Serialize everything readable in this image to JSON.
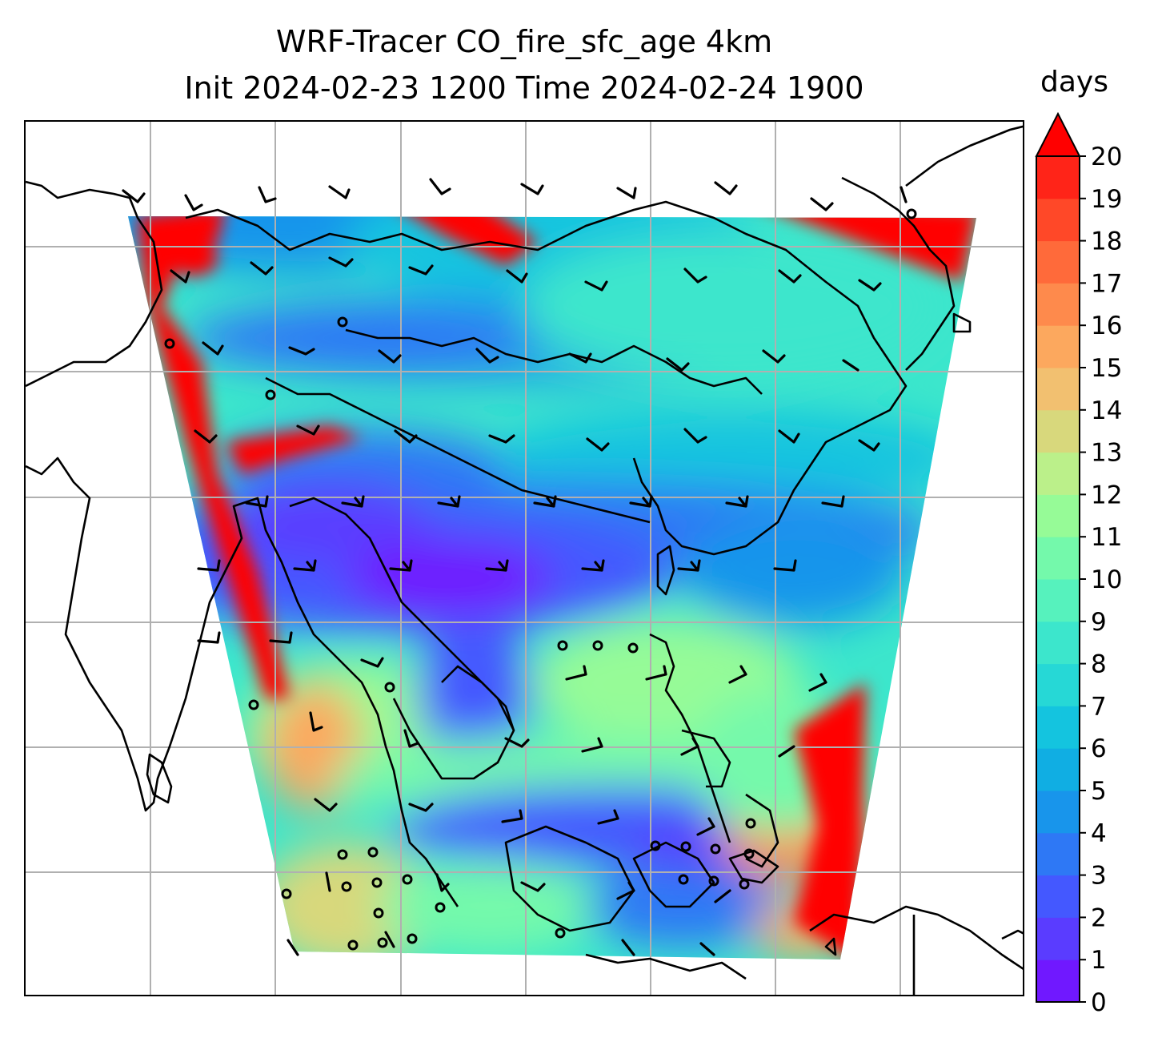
{
  "title": {
    "line1": "WRF-Tracer CO_fire_sfc_age 4km",
    "line2": "Init 2024-02-23 1200 Time 2024-02-24 1900"
  },
  "colorbar": {
    "unit_label": "days",
    "ticks": [
      "0",
      "1",
      "2",
      "3",
      "4",
      "5",
      "6",
      "7",
      "8",
      "9",
      "10",
      "11",
      "12",
      "13",
      "14",
      "15",
      "16",
      "17",
      "18",
      "19",
      "20"
    ],
    "extend": "max",
    "colors": [
      "#7018ff",
      "#5a3cff",
      "#4458ff",
      "#2e78f5",
      "#1895eb",
      "#10aee3",
      "#14c4df",
      "#26d8d6",
      "#3ce6cc",
      "#56f2bd",
      "#74f9ab",
      "#96fb97",
      "#bbf08a",
      "#d8d87c",
      "#f2c070",
      "#fca85e",
      "#fe8a4c",
      "#ff6a3a",
      "#ff4828",
      "#ff2418"
    ],
    "extend_color": "#ff0000"
  },
  "map": {
    "colormap": "rainbow",
    "gridlines": true,
    "coastlines": true,
    "wind_barbs": true
  }
}
